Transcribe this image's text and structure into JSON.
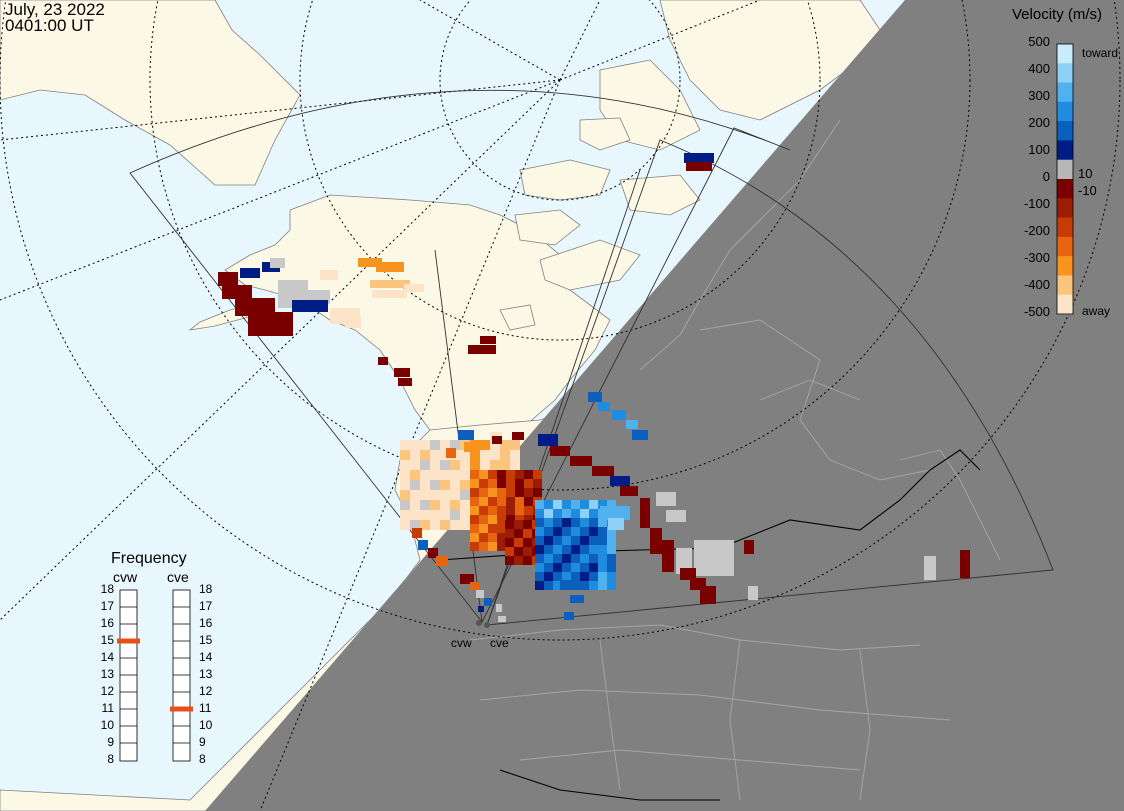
{
  "header": {
    "date": "July, 23 2022",
    "time": "0401:00 UT"
  },
  "colorbar": {
    "title": "Velocity (m/s)",
    "ticks": [
      "500",
      "400",
      "300",
      "200",
      "100",
      "10",
      "0",
      "-10",
      "-100",
      "-200",
      "-300",
      "-400",
      "-500"
    ],
    "toward_label": "toward",
    "away_label": "away",
    "colors": [
      "#c9ecfb",
      "#8fd0f6",
      "#4fb2ee",
      "#1f8ce0",
      "#0b5fbd",
      "#001c85",
      "#b8b8b8",
      "#7a0000",
      "#9c1d05",
      "#c73c05",
      "#e76510",
      "#f7941e",
      "#fcc57d",
      "#fde4c8"
    ]
  },
  "frequency": {
    "title": "Frequency",
    "radars": [
      {
        "name": "cvw",
        "value_mhz": 15
      },
      {
        "name": "cve",
        "value_mhz": 11
      }
    ],
    "scale_labels": [
      "18",
      "17",
      "16",
      "15",
      "14",
      "13",
      "12",
      "11",
      "10",
      "9",
      "8"
    ]
  },
  "sites": [
    {
      "name": "cvw"
    },
    {
      "name": "cve"
    }
  ],
  "map_colors": {
    "ocean": "#e8f6fd",
    "land": "#fcf8e6",
    "night": "#808080",
    "night_land_edge": "#a6a6a6"
  }
}
